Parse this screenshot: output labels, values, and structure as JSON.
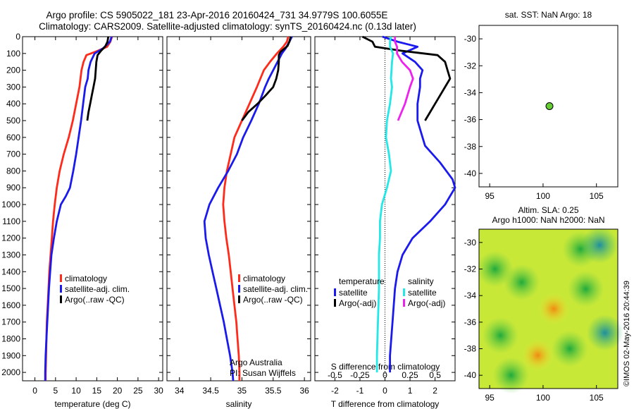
{
  "header": {
    "line1": "Argo profile: CS 5905022_181 23-Apr-2016 20160424_731 34.9779S 100.6055E",
    "line2": "Climatology: CARS2009. Satellite-adjusted climatology: synTS_20160424.nc (0.13d later)"
  },
  "colors": {
    "climatology": "#ff2a1a",
    "satellite": "#1a1aee",
    "argo": "#000000",
    "sat_salinity": "#22e8e8",
    "argo_salinity": "#ee22ee",
    "marker": "#66cc33"
  },
  "chart_data": [
    {
      "type": "line",
      "xlabel": "temperature (deg C)",
      "ylabel": "",
      "xlim": [
        -3,
        31
      ],
      "ylim": [
        2050,
        0
      ],
      "xticks": [
        "0",
        "5",
        "10",
        "15",
        "20",
        "25",
        "30"
      ],
      "yticks": [
        "0",
        "100",
        "200",
        "300",
        "400",
        "500",
        "600",
        "700",
        "800",
        "900",
        "1000",
        "1100",
        "1200",
        "1300",
        "1400",
        "1500",
        "1600",
        "1700",
        "1800",
        "1900",
        "2000"
      ],
      "legend": {
        "placement": "lower-center",
        "entries": [
          "climatology",
          "satellite-adj. clim.",
          "Argo(..raw -QC)"
        ]
      },
      "series": [
        {
          "name": "climatology",
          "color": "#ff2a1a",
          "points": [
            [
              18.7,
              0
            ],
            [
              18.3,
              30
            ],
            [
              17.5,
              60
            ],
            [
              15.2,
              85
            ],
            [
              12.5,
              110
            ],
            [
              11.8,
              150
            ],
            [
              11.3,
              200
            ],
            [
              10.8,
              300
            ],
            [
              10.0,
              400
            ],
            [
              9.2,
              500
            ],
            [
              8.2,
              600
            ],
            [
              7.0,
              700
            ],
            [
              6.0,
              800
            ],
            [
              5.3,
              900
            ],
            [
              4.8,
              1000
            ],
            [
              4.4,
              1100
            ],
            [
              4.1,
              1200
            ],
            [
              3.8,
              1300
            ],
            [
              3.5,
              1400
            ],
            [
              3.3,
              1500
            ],
            [
              3.1,
              1600
            ],
            [
              2.9,
              1700
            ],
            [
              2.8,
              1800
            ],
            [
              2.7,
              1900
            ],
            [
              2.6,
              2000
            ],
            [
              2.6,
              2050
            ]
          ]
        },
        {
          "name": "satellite-adj. clim.",
          "color": "#1a1aee",
          "points": [
            [
              18.6,
              0
            ],
            [
              18.2,
              30
            ],
            [
              16.5,
              70
            ],
            [
              14.5,
              100
            ],
            [
              13.5,
              150
            ],
            [
              13.0,
              200
            ],
            [
              12.8,
              250
            ],
            [
              12.2,
              300
            ],
            [
              11.7,
              400
            ],
            [
              11.2,
              500
            ],
            [
              10.6,
              600
            ],
            [
              10.0,
              700
            ],
            [
              9.3,
              800
            ],
            [
              8.5,
              900
            ],
            [
              7.5,
              950
            ],
            [
              6.3,
              1000
            ],
            [
              5.3,
              1100
            ],
            [
              4.6,
              1200
            ],
            [
              4.0,
              1300
            ],
            [
              3.7,
              1400
            ],
            [
              3.4,
              1500
            ],
            [
              3.2,
              1600
            ],
            [
              3.0,
              1700
            ],
            [
              2.8,
              1800
            ],
            [
              2.6,
              1900
            ],
            [
              2.5,
              2000
            ],
            [
              2.5,
              2050
            ]
          ]
        },
        {
          "name": "Argo(..raw -QC)",
          "color": "#000000",
          "points": [
            [
              17.8,
              0
            ],
            [
              17.6,
              30
            ],
            [
              17.0,
              60
            ],
            [
              16.0,
              85
            ],
            [
              15.2,
              110
            ],
            [
              14.9,
              150
            ],
            [
              14.6,
              250
            ],
            [
              14.2,
              300
            ],
            [
              13.8,
              350
            ],
            [
              13.4,
              400
            ],
            [
              13.0,
              450
            ],
            [
              12.7,
              500
            ]
          ]
        }
      ]
    },
    {
      "type": "line",
      "xlabel": "salinity",
      "ylabel": "",
      "xlim": [
        33.8,
        36.1
      ],
      "ylim": [
        2050,
        0
      ],
      "xticks": [
        "34",
        "34.5",
        "35",
        "35.5",
        "36"
      ],
      "legend": {
        "placement": "lower-center",
        "entries": [
          "climatology",
          "satellite-adj. clim.",
          "Argo(..raw -QC)"
        ]
      },
      "annotations": [
        "Argo Australia",
        "PI: Susan Wijffels"
      ],
      "series": [
        {
          "name": "climatology",
          "color": "#ff2a1a",
          "points": [
            [
              35.74,
              0
            ],
            [
              35.72,
              30
            ],
            [
              35.66,
              60
            ],
            [
              35.56,
              100
            ],
            [
              35.45,
              150
            ],
            [
              35.35,
              200
            ],
            [
              35.24,
              300
            ],
            [
              35.12,
              400
            ],
            [
              35.0,
              500
            ],
            [
              34.88,
              600
            ],
            [
              34.82,
              700
            ],
            [
              34.76,
              800
            ],
            [
              34.72,
              900
            ],
            [
              34.7,
              1000
            ],
            [
              34.72,
              1100
            ],
            [
              34.75,
              1200
            ],
            [
              34.79,
              1300
            ],
            [
              34.82,
              1400
            ],
            [
              34.85,
              1500
            ],
            [
              34.88,
              1600
            ],
            [
              34.91,
              1700
            ],
            [
              34.93,
              1800
            ],
            [
              34.95,
              1900
            ],
            [
              34.96,
              2000
            ],
            [
              34.96,
              2050
            ]
          ]
        },
        {
          "name": "satellite-adj. clim.",
          "color": "#1a1aee",
          "points": [
            [
              35.8,
              0
            ],
            [
              35.76,
              30
            ],
            [
              35.7,
              70
            ],
            [
              35.64,
              100
            ],
            [
              35.57,
              150
            ],
            [
              35.5,
              200
            ],
            [
              35.43,
              250
            ],
            [
              35.37,
              300
            ],
            [
              35.27,
              400
            ],
            [
              35.15,
              500
            ],
            [
              35.02,
              600
            ],
            [
              34.92,
              700
            ],
            [
              34.78,
              800
            ],
            [
              34.62,
              900
            ],
            [
              34.48,
              1000
            ],
            [
              34.4,
              1100
            ],
            [
              34.42,
              1200
            ],
            [
              34.47,
              1300
            ],
            [
              34.53,
              1400
            ],
            [
              34.59,
              1500
            ],
            [
              34.65,
              1600
            ],
            [
              34.71,
              1700
            ],
            [
              34.76,
              1800
            ],
            [
              34.81,
              1900
            ],
            [
              34.85,
              2000
            ],
            [
              34.86,
              2050
            ]
          ]
        },
        {
          "name": "Argo(..raw -QC)",
          "color": "#000000",
          "points": [
            [
              35.78,
              0
            ],
            [
              35.76,
              30
            ],
            [
              35.73,
              55
            ],
            [
              35.62,
              90
            ],
            [
              35.59,
              110
            ],
            [
              35.59,
              150
            ],
            [
              35.58,
              200
            ],
            [
              35.55,
              250
            ],
            [
              35.5,
              300
            ],
            [
              35.38,
              350
            ],
            [
              35.25,
              400
            ],
            [
              35.1,
              450
            ],
            [
              35.0,
              500
            ]
          ]
        }
      ]
    },
    {
      "type": "line",
      "xlabel": "T difference from climatology",
      "top_label": "S difference from climatology",
      "xlim": [
        -2.8,
        2.8
      ],
      "ylim": [
        2050,
        0
      ],
      "xticks": [
        "-2",
        "-1",
        "0",
        "1",
        "2"
      ],
      "top_xticks": [
        "-0.5",
        "-0.25",
        "0",
        "0.25",
        "0.5"
      ],
      "legend": {
        "placement": "lower-center",
        "groups": [
          {
            "title": "temperature",
            "entries": [
              "satellite",
              "Argo(-adj)"
            ]
          },
          {
            "title": "salinity",
            "entries": [
              "satellite",
              "Argo(-adj)"
            ]
          }
        ]
      },
      "series": [
        {
          "name": "temperature satellite",
          "color": "#1a1aee",
          "points": [
            [
              -0.1,
              0
            ],
            [
              0.5,
              30
            ],
            [
              1.3,
              60
            ],
            [
              0.7,
              100
            ],
            [
              1.2,
              150
            ],
            [
              1.5,
              200
            ],
            [
              1.4,
              250
            ],
            [
              1.4,
              300
            ],
            [
              1.3,
              400
            ],
            [
              1.3,
              500
            ],
            [
              1.5,
              600
            ],
            [
              1.6,
              650
            ],
            [
              2.2,
              750
            ],
            [
              2.7,
              850
            ],
            [
              2.8,
              900
            ],
            [
              2.4,
              1000
            ],
            [
              1.8,
              1100
            ],
            [
              1.1,
              1200
            ],
            [
              0.7,
              1300
            ],
            [
              0.5,
              1400
            ],
            [
              0.4,
              1500
            ],
            [
              0.3,
              1700
            ],
            [
              0.2,
              1900
            ],
            [
              0.2,
              2000
            ]
          ]
        },
        {
          "name": "temperature Argo(-adj)",
          "color": "#000000",
          "points": [
            [
              -0.9,
              0
            ],
            [
              -0.5,
              30
            ],
            [
              -0.4,
              60
            ],
            [
              0.7,
              85
            ],
            [
              2.1,
              110
            ],
            [
              2.4,
              150
            ],
            [
              2.5,
              200
            ],
            [
              2.6,
              250
            ],
            [
              2.4,
              300
            ],
            [
              2.2,
              350
            ],
            [
              2.0,
              400
            ],
            [
              1.8,
              450
            ],
            [
              1.6,
              500
            ]
          ]
        },
        {
          "name": "salinity satellite",
          "color": "#22e8e8",
          "points": [
            [
              0.06,
              0
            ],
            [
              0.05,
              30
            ],
            [
              0.05,
              60
            ],
            [
              0.08,
              100
            ],
            [
              0.07,
              150
            ],
            [
              0.06,
              250
            ],
            [
              0.07,
              300
            ],
            [
              0.05,
              400
            ],
            [
              0.02,
              500
            ],
            [
              0.01,
              600
            ],
            [
              0.04,
              700
            ],
            [
              0.06,
              800
            ],
            [
              0.02,
              900
            ],
            [
              -0.03,
              1000
            ],
            [
              -0.05,
              1100
            ],
            [
              -0.05,
              1200
            ],
            [
              -0.06,
              1300
            ],
            [
              -0.06,
              1500
            ],
            [
              -0.07,
              1700
            ],
            [
              -0.08,
              1900
            ],
            [
              -0.08,
              2000
            ]
          ]
        },
        {
          "name": "salinity Argo(-adj)",
          "color": "#ee22ee",
          "points": [
            [
              0.1,
              0
            ],
            [
              0.1,
              30
            ],
            [
              0.12,
              60
            ],
            [
              0.12,
              100
            ],
            [
              0.17,
              150
            ],
            [
              0.25,
              200
            ],
            [
              0.28,
              250
            ],
            [
              0.25,
              300
            ],
            [
              0.2,
              400
            ],
            [
              0.13,
              500
            ]
          ]
        }
      ]
    },
    {
      "type": "scatter",
      "title": "sat. SST: NaN Argo: 18",
      "xlim": [
        94,
        107
      ],
      "ylim": [
        -41,
        -29
      ],
      "xticks": [
        "95",
        "100",
        "105"
      ],
      "yticks": [
        "-30",
        "-32",
        "-34",
        "-36",
        "-38",
        "-40"
      ],
      "points": [
        {
          "x": 100.6,
          "y": -35.0
        }
      ]
    },
    {
      "type": "heatmap",
      "title": "Altim. SLA: 0.25",
      "subtitle": "Argo h1000: NaN h2000: NaN",
      "xlim": [
        94,
        107
      ],
      "ylim": [
        -41,
        -29
      ],
      "xticks": [
        "95",
        "100",
        "105"
      ],
      "yticks": [
        "-30",
        "-32",
        "-34",
        "-36",
        "-38",
        "-40"
      ],
      "blobs": [
        {
          "x": 95.5,
          "y": -32.0,
          "kind": "green"
        },
        {
          "x": 98.0,
          "y": -33.0,
          "kind": "green"
        },
        {
          "x": 103.5,
          "y": -30.5,
          "kind": "green"
        },
        {
          "x": 105.3,
          "y": -30.2,
          "kind": "teal"
        },
        {
          "x": 101.0,
          "y": -35.0,
          "kind": "orange"
        },
        {
          "x": 99.5,
          "y": -38.5,
          "kind": "orange"
        },
        {
          "x": 105.8,
          "y": -36.8,
          "kind": "teal"
        },
        {
          "x": 102.5,
          "y": -38.0,
          "kind": "green"
        },
        {
          "x": 96.0,
          "y": -37.0,
          "kind": "green"
        },
        {
          "x": 104.0,
          "y": -33.5,
          "kind": "green"
        },
        {
          "x": 97.0,
          "y": -40.0,
          "kind": "green"
        }
      ]
    }
  ],
  "watermark": "©IMOS 02-May-2016 20:44:39"
}
